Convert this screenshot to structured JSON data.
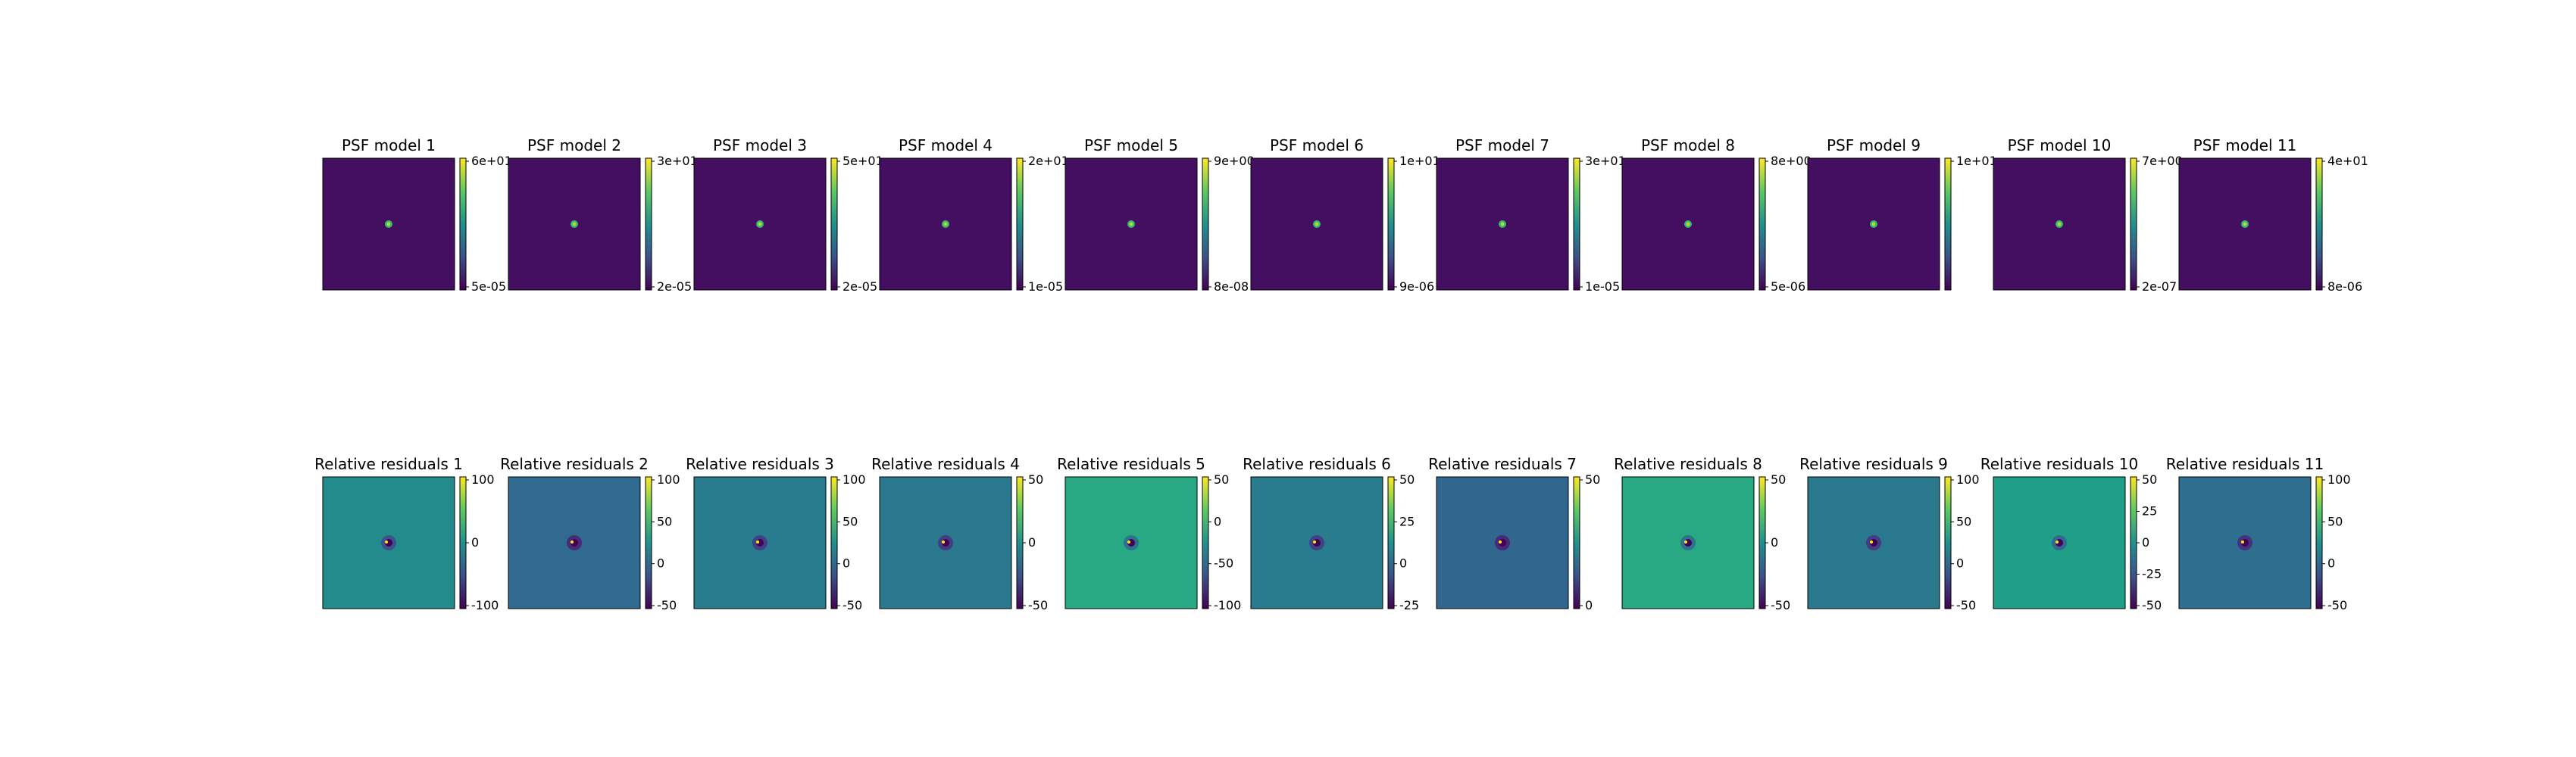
{
  "chart_data": {
    "type": "heatmap",
    "colormap": "viridis",
    "rows": [
      {
        "row": "psf_models",
        "panels": [
          {
            "title": "PSF model 1",
            "field": "psf",
            "background_value": 0.04,
            "colorbar_ticks": [
              "6e+01",
              "5e-05"
            ]
          },
          {
            "title": "PSF model 2",
            "field": "psf",
            "background_value": 0.04,
            "colorbar_ticks": [
              "3e+01",
              "2e-05"
            ]
          },
          {
            "title": "PSF model 3",
            "field": "psf",
            "background_value": 0.04,
            "colorbar_ticks": [
              "5e+01",
              "2e-05"
            ]
          },
          {
            "title": "PSF model 4",
            "field": "psf",
            "background_value": 0.04,
            "colorbar_ticks": [
              "2e+01",
              "1e-05"
            ]
          },
          {
            "title": "PSF model 5",
            "field": "psf",
            "background_value": 0.04,
            "colorbar_ticks": [
              "9e+00",
              "8e-08"
            ]
          },
          {
            "title": "PSF model 6",
            "field": "psf",
            "background_value": 0.04,
            "colorbar_ticks": [
              "1e+01",
              "9e-06"
            ]
          },
          {
            "title": "PSF model 7",
            "field": "psf",
            "background_value": 0.04,
            "colorbar_ticks": [
              "3e+01",
              "1e-05"
            ]
          },
          {
            "title": "PSF model 8",
            "field": "psf",
            "background_value": 0.04,
            "colorbar_ticks": [
              "8e+00",
              "5e-06"
            ]
          },
          {
            "title": "PSF model 9",
            "field": "psf",
            "background_value": 0.04,
            "colorbar_ticks": [
              "1e+01",
              ""
            ]
          },
          {
            "title": "PSF model 10",
            "field": "psf",
            "background_value": 0.04,
            "colorbar_ticks": [
              "7e+00",
              "2e-07"
            ]
          },
          {
            "title": "PSF model 11",
            "field": "psf",
            "background_value": 0.04,
            "colorbar_ticks": [
              "4e+01",
              "8e-06"
            ]
          }
        ]
      },
      {
        "row": "relative_residuals",
        "panels": [
          {
            "title": "Relative residuals 1",
            "field": "residual",
            "background_value": 0.48,
            "colorbar_ticks": [
              "100",
              "0",
              "-100"
            ]
          },
          {
            "title": "Relative residuals 2",
            "field": "residual",
            "background_value": 0.34,
            "colorbar_ticks": [
              "100",
              "50",
              "0",
              "-50"
            ]
          },
          {
            "title": "Relative residuals 3",
            "field": "residual",
            "background_value": 0.42,
            "colorbar_ticks": [
              "100",
              "50",
              "0",
              "-50"
            ]
          },
          {
            "title": "Relative residuals 4",
            "field": "residual",
            "background_value": 0.4,
            "colorbar_ticks": [
              "50",
              "0",
              "-50"
            ]
          },
          {
            "title": "Relative residuals 5",
            "field": "residual",
            "background_value": 0.6,
            "colorbar_ticks": [
              "50",
              "0",
              "-50",
              "-100"
            ]
          },
          {
            "title": "Relative residuals 6",
            "field": "residual",
            "background_value": 0.42,
            "colorbar_ticks": [
              "50",
              "25",
              "0",
              "-25"
            ]
          },
          {
            "title": "Relative residuals 7",
            "field": "residual",
            "background_value": 0.33,
            "colorbar_ticks": [
              "50",
              "0"
            ]
          },
          {
            "title": "Relative residuals 8",
            "field": "residual",
            "background_value": 0.6,
            "colorbar_ticks": [
              "50",
              "0",
              "-50"
            ]
          },
          {
            "title": "Relative residuals 9",
            "field": "residual",
            "background_value": 0.4,
            "colorbar_ticks": [
              "100",
              "50",
              "0",
              "-50"
            ]
          },
          {
            "title": "Relative residuals 10",
            "field": "residual",
            "background_value": 0.56,
            "colorbar_ticks": [
              "50",
              "25",
              "0",
              "-25",
              "-50"
            ]
          },
          {
            "title": "Relative residuals 11",
            "field": "residual",
            "background_value": 0.36,
            "colorbar_ticks": [
              "100",
              "50",
              "0",
              "-50"
            ]
          }
        ]
      }
    ]
  }
}
